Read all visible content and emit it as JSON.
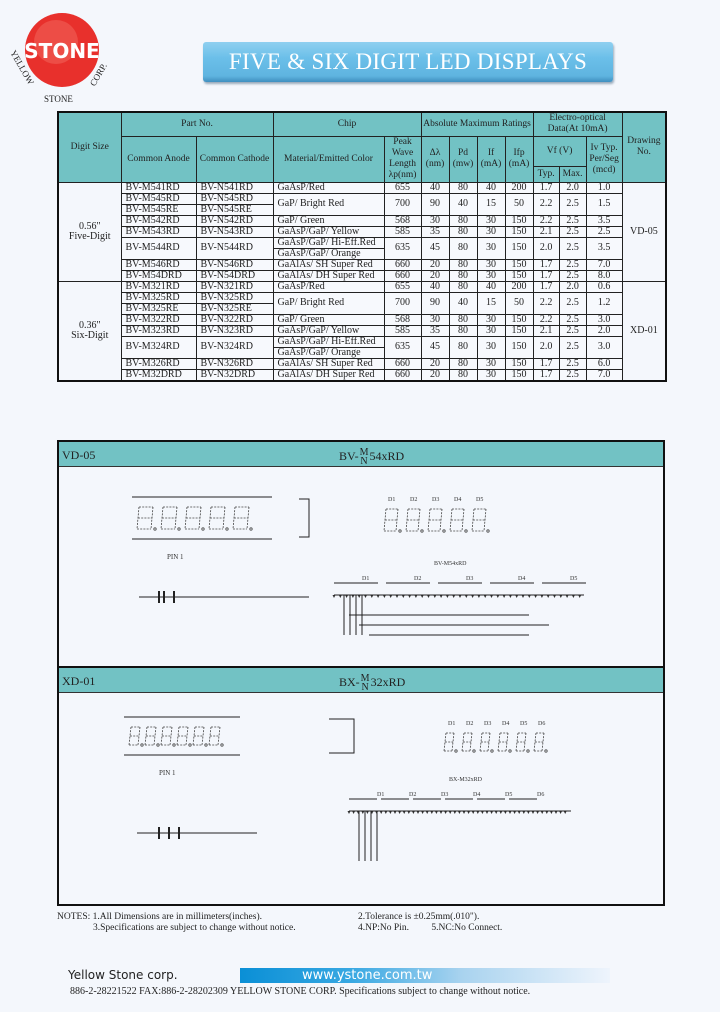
{
  "logo": {
    "text": "STONE",
    "ring_text": "YELLOW STONE CORP.",
    "color": "#e8302c"
  },
  "title": "FIVE & SIX DIGIT LED DISPLAYS",
  "table": {
    "headers": {
      "digit_size": "Digit Size",
      "part_no": "Part No.",
      "chip": "Chip",
      "abs_max": "Absolute Maximum Ratings",
      "electro": "Electro-optical Data(At 10mA)",
      "drawing": "Drawing No.",
      "anode": "Common Anode",
      "cathode": "Common Cathode",
      "material": "Material/Emitted Color",
      "peak": "Peak Wave Length λp(nm)",
      "dl": "Δλ (nm)",
      "pd": "Pd (mw)",
      "if": "If (mA)",
      "ifp": "Ifp (mA)",
      "vf": "Vf (V)",
      "typ": "Typ.",
      "max": "Max.",
      "iv": "Iv Typ. Per/Seg (mcd)"
    },
    "groups": [
      {
        "size": "0.56\"",
        "digits": "Five-Digit",
        "drawing": "VD-05",
        "rows": [
          {
            "anode": [
              "BV-M541RD"
            ],
            "cathode": [
              "BV-N541RD"
            ],
            "chip": [
              "GaAsP/Red"
            ],
            "v": [
              "655",
              "40",
              "80",
              "40",
              "200",
              "1.7",
              "2.0",
              "1.0"
            ]
          },
          {
            "anode": [
              "BV-M545RD",
              "BV-M545RE"
            ],
            "cathode": [
              "BV-N545RD",
              "BV-N545RE"
            ],
            "chip": [
              "GaP/ Bright Red"
            ],
            "v": [
              "700",
              "90",
              "40",
              "15",
              "50",
              "2.2",
              "2.5",
              "1.5"
            ]
          },
          {
            "anode": [
              "BV-M542RD"
            ],
            "cathode": [
              "BV-N542RD"
            ],
            "chip": [
              "GaP/ Green"
            ],
            "v": [
              "568",
              "30",
              "80",
              "30",
              "150",
              "2.2",
              "2.5",
              "3.5"
            ]
          },
          {
            "anode": [
              "BV-M543RD"
            ],
            "cathode": [
              "BV-N543RD"
            ],
            "chip": [
              "GaAsP/GaP/ Yellow"
            ],
            "v": [
              "585",
              "35",
              "80",
              "30",
              "150",
              "2.1",
              "2.5",
              "2.5"
            ]
          },
          {
            "anode": [
              "BV-M544RD"
            ],
            "cathode": [
              "BV-N544RD"
            ],
            "chip": [
              "GaAsP/GaP/ Hi-Eff.Red",
              "GaAsP/GaP/ Orange"
            ],
            "v": [
              "635",
              "45",
              "80",
              "30",
              "150",
              "2.0",
              "2.5",
              "3.5"
            ]
          },
          {
            "anode": [
              "BV-M546RD"
            ],
            "cathode": [
              "BV-N546RD"
            ],
            "chip": [
              "GaAlAs/ SH Super Red"
            ],
            "v": [
              "660",
              "20",
              "80",
              "30",
              "150",
              "1.7",
              "2.5",
              "7.0"
            ]
          },
          {
            "anode": [
              "BV-M54DRD"
            ],
            "cathode": [
              "BV-N54DRD"
            ],
            "chip": [
              "GaAlAs/ DH Super Red"
            ],
            "v": [
              "660",
              "20",
              "80",
              "30",
              "150",
              "1.7",
              "2.5",
              "8.0"
            ]
          }
        ]
      },
      {
        "size": "0.36\"",
        "digits": "Six-Digit",
        "drawing": "XD-01",
        "rows": [
          {
            "anode": [
              "BV-M321RD"
            ],
            "cathode": [
              "BV-N321RD"
            ],
            "chip": [
              "GaAsP/Red"
            ],
            "v": [
              "655",
              "40",
              "80",
              "40",
              "200",
              "1.7",
              "2.0",
              "0.6"
            ]
          },
          {
            "anode": [
              "BV-M325RD",
              "BV-M325RE"
            ],
            "cathode": [
              "BV-N325RD",
              "BV-N325RE"
            ],
            "chip": [
              "GaP/ Bright Red"
            ],
            "v": [
              "700",
              "90",
              "40",
              "15",
              "50",
              "2.2",
              "2.5",
              "1.2"
            ]
          },
          {
            "anode": [
              "BV-M322RD"
            ],
            "cathode": [
              "BV-N322RD"
            ],
            "chip": [
              "GaP/ Green"
            ],
            "v": [
              "568",
              "30",
              "80",
              "30",
              "150",
              "2.2",
              "2.5",
              "3.0"
            ]
          },
          {
            "anode": [
              "BV-M323RD"
            ],
            "cathode": [
              "BV-N323RD"
            ],
            "chip": [
              "GaAsP/GaP/ Yellow"
            ],
            "v": [
              "585",
              "35",
              "80",
              "30",
              "150",
              "2.1",
              "2.5",
              "2.0"
            ]
          },
          {
            "anode": [
              "BV-M324RD"
            ],
            "cathode": [
              "BV-N324RD"
            ],
            "chip": [
              "GaAsP/GaP/ Hi-Eff.Red",
              "GaAsP/GaP/ Orange"
            ],
            "v": [
              "635",
              "45",
              "80",
              "30",
              "150",
              "2.0",
              "2.5",
              "3.0"
            ]
          },
          {
            "anode": [
              "BV-M326RD"
            ],
            "cathode": [
              "BV-N326RD"
            ],
            "chip": [
              "GaAlAs/ SH Super Red"
            ],
            "v": [
              "660",
              "20",
              "80",
              "30",
              "150",
              "1.7",
              "2.5",
              "6.0"
            ]
          },
          {
            "anode": [
              "BV-M32DRD"
            ],
            "cathode": [
              "BV-N32DRD"
            ],
            "chip": [
              "GaAlAs/ DH Super Red"
            ],
            "v": [
              "660",
              "20",
              "80",
              "30",
              "150",
              "1.7",
              "2.5",
              "7.0"
            ]
          }
        ]
      }
    ]
  },
  "panels": [
    {
      "id": "VD-05",
      "prefix": "BV-",
      "m": "M",
      "n": "N",
      "suffix": "54xRD",
      "digit_labels": [
        "D1",
        "D2",
        "D3",
        "D4",
        "D5"
      ],
      "circuit_title": "BV-M54xRD",
      "pin1": "PIN 1"
    },
    {
      "id": "XD-01",
      "prefix": "BX-",
      "m": "M",
      "n": "N",
      "suffix": "32xRD",
      "digit_labels": [
        "D1",
        "D2",
        "D3",
        "D4",
        "D5",
        "D6"
      ],
      "circuit_title": "BX-M32xRD",
      "pin1": "PIN 1"
    }
  ],
  "notes": {
    "label": "NOTES:",
    "n1": "1.All Dimensions are in millimeters(inches).",
    "n2": "2.Tolerance is ±0.25mm(.010\").",
    "n3": "3.Specifications are subject to change without notice.",
    "n4": "4.NP:No Pin.",
    "n5": "5.NC:No Connect."
  },
  "footer": {
    "company": "Yellow Stone corp.",
    "url": "www.ystone.com.tw",
    "line": "886-2-28221522 FAX:886-2-28202309     YELLOW STONE CORP. Specifications subject to change without notice."
  }
}
